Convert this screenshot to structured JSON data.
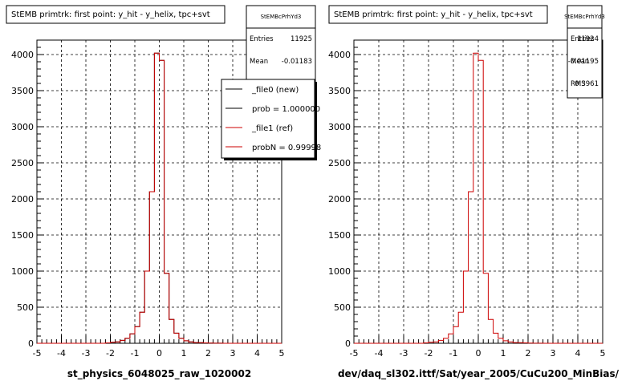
{
  "footer_text": "",
  "chart_data": [
    {
      "type": "histogram",
      "title": "StEMB primtrk: first point: y_hit - y_helix, tpc+svt",
      "xlabel": "st_physics_6048025_raw_1020002",
      "ylabel": "",
      "xlim": [
        -5,
        5
      ],
      "ylim": [
        0,
        4200
      ],
      "grid": true,
      "xticks": [
        "-5",
        "-4",
        "-3",
        "-2",
        "-1",
        "0",
        "1",
        "2",
        "3",
        "4",
        "5"
      ],
      "yticks": [
        "0",
        "500",
        "1000",
        "1500",
        "2000",
        "2500",
        "3000",
        "3500",
        "4000"
      ],
      "stats": {
        "name": "StEMBcPrhYd3",
        "entries_label": "Entries",
        "entries": "11925",
        "mean_label": "Mean",
        "mean": "-0.01183"
      },
      "legend": {
        "placement": "top-right",
        "entries": [
          "_file0 (new)",
          "prob = 1.000000",
          "_file1 (ref)",
          "probN = 0.99998"
        ]
      },
      "bin_width": 0.2,
      "bin_centers": [
        -4.9,
        -4.7,
        -4.5,
        -4.3,
        -4.1,
        -3.9,
        -3.7,
        -3.5,
        -3.3,
        -3.1,
        -2.9,
        -2.7,
        -2.5,
        -2.3,
        -2.1,
        -1.9,
        -1.7,
        -1.5,
        -1.3,
        -1.1,
        -0.9,
        -0.7,
        -0.5,
        -0.3,
        -0.1,
        0.1,
        0.3,
        0.5,
        0.7,
        0.9,
        1.1,
        1.3,
        1.5,
        1.7,
        1.9,
        2.1,
        2.3,
        2.5,
        2.7,
        2.9,
        3.1,
        3.3,
        3.5,
        3.7,
        3.9,
        4.1,
        4.3,
        4.5,
        4.7,
        4.9
      ],
      "series": [
        {
          "name": "_file0 (new)",
          "color": "#000000",
          "values": [
            0,
            0,
            0,
            0,
            0,
            0,
            0,
            0,
            0,
            0,
            0,
            0,
            0,
            0,
            5,
            15,
            20,
            40,
            70,
            130,
            230,
            430,
            1000,
            2100,
            4020,
            3920,
            970,
            330,
            140,
            70,
            35,
            20,
            10,
            8,
            5,
            3,
            2,
            1,
            0,
            0,
            0,
            0,
            0,
            0,
            0,
            0,
            0,
            0,
            0,
            0
          ]
        },
        {
          "name": "_file1 (ref)",
          "color": "#cc0000",
          "values": [
            0,
            0,
            0,
            0,
            0,
            0,
            0,
            0,
            0,
            0,
            0,
            0,
            0,
            0,
            5,
            15,
            20,
            40,
            70,
            130,
            230,
            430,
            1000,
            2100,
            4020,
            3920,
            970,
            330,
            140,
            70,
            35,
            20,
            10,
            8,
            5,
            3,
            2,
            1,
            0,
            0,
            0,
            0,
            0,
            0,
            0,
            0,
            0,
            0,
            0,
            0
          ]
        }
      ]
    },
    {
      "type": "histogram",
      "title": "StEMB primtrk: first point: y_hit - y_helix, tpc+svt",
      "xlabel": "dev/daq_sl302.ittf/Sat/year_2005/CuCu200_MinBias/",
      "ylabel": "",
      "xlim": [
        -5,
        5
      ],
      "ylim": [
        0,
        4200
      ],
      "grid": true,
      "xticks": [
        "-5",
        "-4",
        "-3",
        "-2",
        "-1",
        "0",
        "1",
        "2",
        "3",
        "4",
        "5"
      ],
      "yticks": [
        "0",
        "500",
        "1000",
        "1500",
        "2000",
        "2500",
        "3000",
        "3500",
        "4000"
      ],
      "stats": {
        "name": "StEMBcPrhYd3",
        "entries_label": "Entries",
        "entries": "11924",
        "mean_label": "Mean",
        "mean": "-0.01195",
        "rms_label": "RMS",
        "rms": "0.3961"
      },
      "bin_width": 0.2,
      "bin_centers": [
        -4.9,
        -4.7,
        -4.5,
        -4.3,
        -4.1,
        -3.9,
        -3.7,
        -3.5,
        -3.3,
        -3.1,
        -2.9,
        -2.7,
        -2.5,
        -2.3,
        -2.1,
        -1.9,
        -1.7,
        -1.5,
        -1.3,
        -1.1,
        -0.9,
        -0.7,
        -0.5,
        -0.3,
        -0.1,
        0.1,
        0.3,
        0.5,
        0.7,
        0.9,
        1.1,
        1.3,
        1.5,
        1.7,
        1.9,
        2.1,
        2.3,
        2.5,
        2.7,
        2.9,
        3.1,
        3.3,
        3.5,
        3.7,
        3.9,
        4.1,
        4.3,
        4.5,
        4.7,
        4.9
      ],
      "series": [
        {
          "name": "",
          "color": "#cc0000",
          "values": [
            0,
            0,
            0,
            0,
            0,
            0,
            0,
            0,
            0,
            0,
            0,
            0,
            0,
            0,
            5,
            15,
            20,
            40,
            70,
            130,
            230,
            430,
            1000,
            2100,
            4020,
            3920,
            970,
            330,
            140,
            70,
            35,
            20,
            10,
            8,
            5,
            3,
            2,
            1,
            0,
            0,
            0,
            0,
            0,
            0,
            0,
            0,
            0,
            0,
            0,
            0
          ]
        }
      ]
    }
  ]
}
